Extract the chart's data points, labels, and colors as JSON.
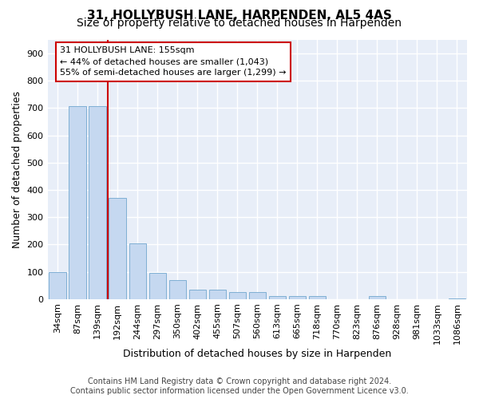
{
  "title": "31, HOLLYBUSH LANE, HARPENDEN, AL5 4AS",
  "subtitle": "Size of property relative to detached houses in Harpenden",
  "xlabel": "Distribution of detached houses by size in Harpenden",
  "ylabel": "Number of detached properties",
  "categories": [
    "34sqm",
    "87sqm",
    "139sqm",
    "192sqm",
    "244sqm",
    "297sqm",
    "350sqm",
    "402sqm",
    "455sqm",
    "507sqm",
    "560sqm",
    "613sqm",
    "665sqm",
    "718sqm",
    "770sqm",
    "823sqm",
    "876sqm",
    "928sqm",
    "981sqm",
    "1033sqm",
    "1086sqm"
  ],
  "values": [
    100,
    707,
    707,
    370,
    205,
    95,
    70,
    33,
    35,
    25,
    25,
    10,
    10,
    10,
    0,
    0,
    12,
    0,
    0,
    0,
    2
  ],
  "bar_color": "#c5d8f0",
  "bar_edge_color": "#7fafd4",
  "property_line_color": "#cc0000",
  "annotation_line1": "31 HOLLYBUSH LANE: 155sqm",
  "annotation_line2": "← 44% of detached houses are smaller (1,043)",
  "annotation_line3": "55% of semi-detached houses are larger (1,299) →",
  "annotation_box_color": "#cc0000",
  "ylim": [
    0,
    950
  ],
  "yticks": [
    0,
    100,
    200,
    300,
    400,
    500,
    600,
    700,
    800,
    900
  ],
  "background_color": "#e8eef8",
  "grid_color": "#ffffff",
  "footer": "Contains HM Land Registry data © Crown copyright and database right 2024.\nContains public sector information licensed under the Open Government Licence v3.0.",
  "title_fontsize": 11,
  "subtitle_fontsize": 10,
  "xlabel_fontsize": 9,
  "ylabel_fontsize": 9,
  "tick_fontsize": 8,
  "annotation_fontsize": 8,
  "footer_fontsize": 7
}
